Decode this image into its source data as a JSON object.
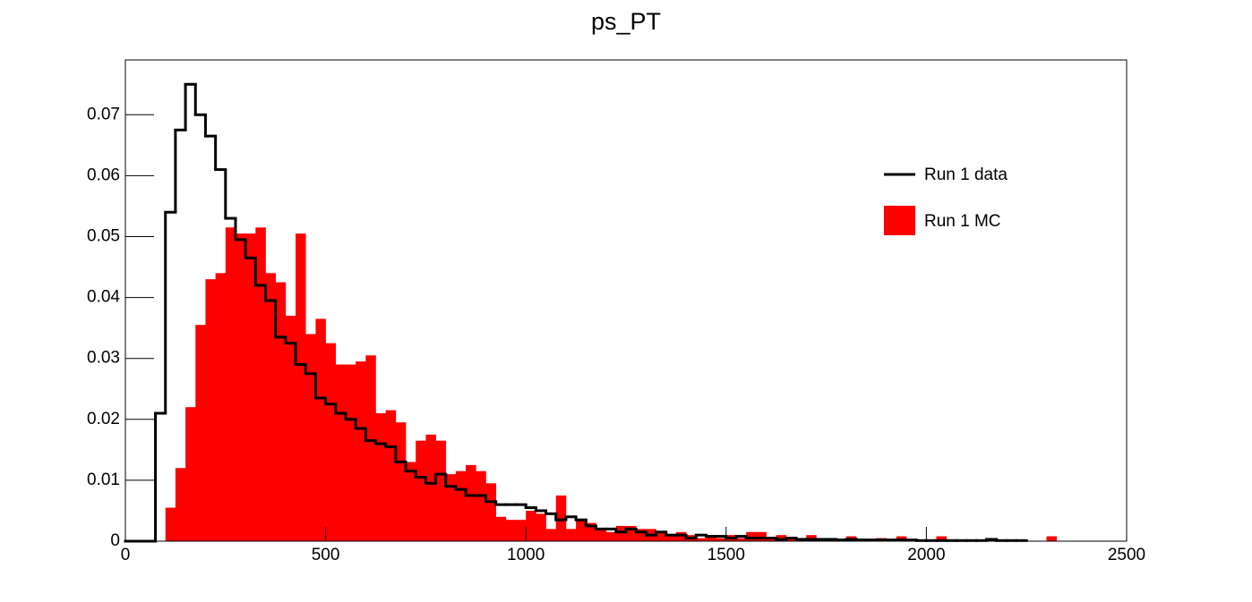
{
  "chart_data": {
    "type": "histogram",
    "title": "ps_PT",
    "bins": [
      0,
      25,
      50,
      75,
      100,
      125,
      150,
      175,
      200,
      225,
      250,
      275,
      300,
      325,
      350,
      375,
      400,
      425,
      450,
      475,
      500,
      525,
      550,
      575,
      600,
      625,
      650,
      675,
      700,
      725,
      750,
      775,
      800,
      825,
      850,
      875,
      900,
      925,
      950,
      975,
      1000,
      1025,
      1050,
      1075,
      1100,
      1125,
      1150,
      1175,
      1200,
      1225,
      1250,
      1275,
      1300,
      1325,
      1350,
      1375,
      1400,
      1425,
      1450,
      1475,
      1500,
      1525,
      1550,
      1575,
      1600,
      1625,
      1650,
      1675,
      1700,
      1725,
      1750,
      1775,
      1800,
      1825,
      1850,
      1875,
      1900,
      1925,
      1950,
      1975,
      2000,
      2025,
      2050,
      2075,
      2100,
      2125,
      2150,
      2175,
      2200,
      2225,
      2250,
      2275,
      2300,
      2325,
      2350,
      2375,
      2400,
      2425,
      2450,
      2475,
      2500
    ],
    "series": [
      {
        "name": "Run 1 data",
        "color": "#000000",
        "style": "step",
        "values": [
          0,
          0,
          0,
          0.021,
          0.054,
          0.0675,
          0.075,
          0.07,
          0.0665,
          0.061,
          0.053,
          0.0495,
          0.0465,
          0.042,
          0.0395,
          0.0335,
          0.0325,
          0.029,
          0.0275,
          0.0235,
          0.0225,
          0.021,
          0.02,
          0.0185,
          0.0165,
          0.016,
          0.0155,
          0.013,
          0.0115,
          0.0105,
          0.0095,
          0.011,
          0.009,
          0.0085,
          0.0075,
          0.0075,
          0.0065,
          0.006,
          0.006,
          0.006,
          0.0055,
          0.005,
          0.0045,
          0.0035,
          0.004,
          0.0035,
          0.0025,
          0.002,
          0.002,
          0.0015,
          0.002,
          0.0015,
          0.001,
          0.0015,
          0.001,
          0.001,
          0.0005,
          0.001,
          0.0008,
          0.0008,
          0.0005,
          0.0008,
          0.0005,
          0.0005,
          0.0005,
          0.0003,
          0.0005,
          0.0003,
          0.0003,
          0.0003,
          0.0003,
          0.0002,
          0.0003,
          0.0002,
          0.0002,
          0.0002,
          0.0002,
          0.0002,
          0.0002,
          0.0001,
          0.0001,
          0.0001,
          0.0001,
          0.0001,
          0.0001,
          0.0001,
          0.0003,
          0.0001,
          0.0001,
          0.0001,
          null,
          null,
          null,
          null,
          null,
          null,
          null,
          null,
          null,
          null
        ]
      },
      {
        "name": "Run 1 MC",
        "color": "#ff0000",
        "style": "filled",
        "values": [
          0,
          0,
          0,
          0,
          0.0055,
          0.012,
          0.022,
          0.0355,
          0.043,
          0.044,
          0.0515,
          0.0505,
          0.0505,
          0.0515,
          0.044,
          0.0425,
          0.037,
          0.0505,
          0.034,
          0.0365,
          0.0325,
          0.029,
          0.029,
          0.0295,
          0.0305,
          0.021,
          0.0215,
          0.0195,
          0.013,
          0.0165,
          0.0175,
          0.0165,
          0.011,
          0.0115,
          0.0125,
          0.0115,
          0.0095,
          0.004,
          0.0035,
          0.0035,
          0.005,
          0.0045,
          0.002,
          0.0075,
          0.002,
          0.0035,
          0.003,
          0.002,
          0.0015,
          0.0025,
          0.0025,
          0.002,
          0.002,
          0.0015,
          0.001,
          0.0015,
          0.001,
          0.0005,
          0.001,
          0.0005,
          0.001,
          0.0005,
          0.0015,
          0.0015,
          0.0005,
          0.001,
          0.0005,
          0.0005,
          0.001,
          0.0003,
          0.0005,
          0.0003,
          0.0008,
          0.0003,
          0.0003,
          0.0005,
          0.0003,
          0.0008,
          0.0003,
          0,
          0.0003,
          0.0008,
          0.0003,
          0,
          0,
          0,
          0.0003,
          0,
          0,
          0,
          0,
          0,
          0.0008,
          0,
          0,
          0,
          0,
          0,
          0,
          0
        ]
      }
    ],
    "xlim": [
      0,
      2500
    ],
    "xticks": [
      0,
      500,
      1000,
      1500,
      2000,
      2500
    ],
    "ylim": [
      0,
      0.079
    ],
    "yticks": [
      0,
      0.01,
      0.02,
      0.03,
      0.04,
      0.05,
      0.06,
      0.07
    ],
    "legend": "upper right",
    "grid": false
  }
}
